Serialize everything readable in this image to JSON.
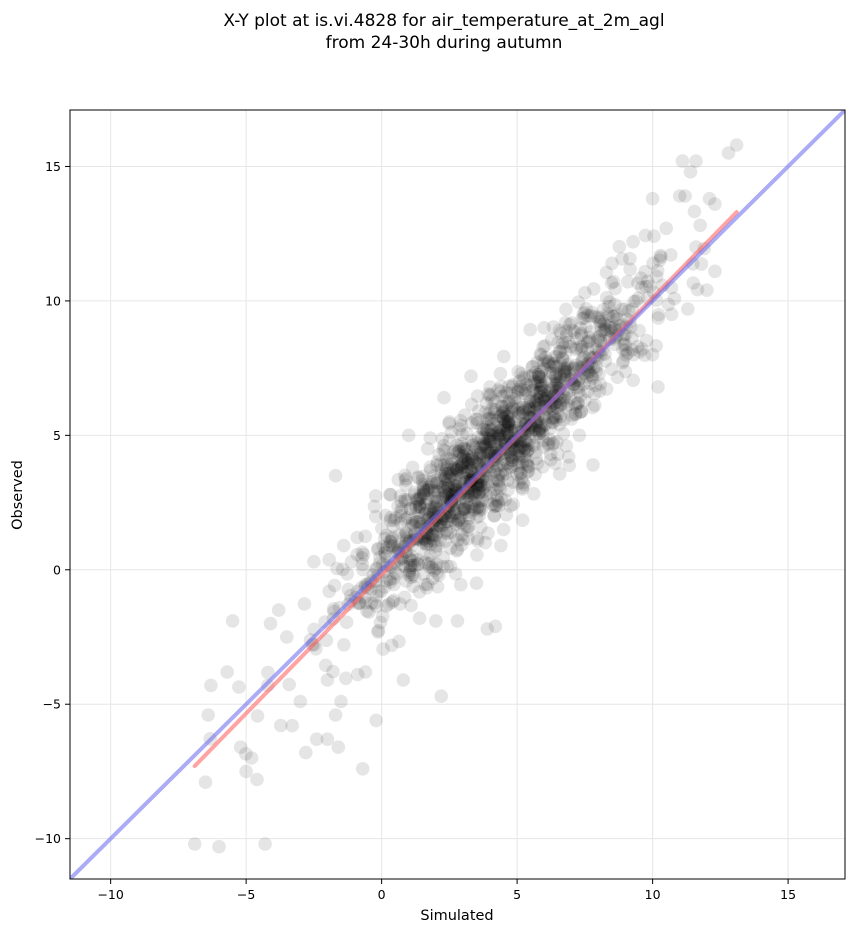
{
  "chart_data": {
    "type": "scatter",
    "title_line1": "X-Y plot at is.vi.4828 for air_temperature_at_2m_agl",
    "title_line2": "from 24-30h during autumn",
    "xlabel": "Simulated",
    "ylabel": "Observed",
    "xlim": [
      -11.5,
      17.1
    ],
    "ylim": [
      -11.5,
      17.1
    ],
    "xticks": [
      -10,
      -5,
      0,
      5,
      10,
      15
    ],
    "yticks": [
      -10,
      -5,
      0,
      5,
      10,
      15
    ],
    "xtick_labels": [
      "−10",
      "−5",
      "0",
      "5",
      "10",
      "15"
    ],
    "ytick_labels": [
      "−10",
      "−5",
      "0",
      "5",
      "10",
      "15"
    ],
    "grid": true,
    "point_color": "#000000",
    "point_alpha": 0.1,
    "fit_line": {
      "color": "#ff6666",
      "x": [
        -6.9,
        13.1
      ],
      "y": [
        -7.3,
        13.3
      ]
    },
    "identity_line": {
      "color": "#6666ee",
      "x": [
        -11.5,
        17.1
      ],
      "y": [
        -11.5,
        17.1
      ]
    },
    "outliers": [
      [
        -6.9,
        -10.2
      ],
      [
        -6.0,
        -10.3
      ],
      [
        -4.3,
        -10.2
      ],
      [
        -6.5,
        -7.9
      ],
      [
        -4.6,
        -7.8
      ],
      [
        -5.0,
        -7.5
      ],
      [
        -4.8,
        -7.0
      ],
      [
        -5.2,
        -6.6
      ],
      [
        -6.4,
        -5.4
      ],
      [
        -6.3,
        -4.3
      ],
      [
        -5.7,
        -3.8
      ],
      [
        -5.5,
        -1.9
      ],
      [
        -1.6,
        -6.6
      ],
      [
        -0.7,
        -7.4
      ],
      [
        -0.2,
        -5.6
      ],
      [
        0.8,
        -4.1
      ],
      [
        2.2,
        -4.7
      ],
      [
        3.9,
        -2.2
      ],
      [
        4.2,
        -2.1
      ],
      [
        -2.8,
        -6.8
      ],
      [
        -3.3,
        -5.8
      ],
      [
        -1.7,
        3.5
      ],
      [
        2.8,
        -1.9
      ],
      [
        1.4,
        -1.8
      ],
      [
        2.0,
        -1.9
      ],
      [
        3.3,
        7.2
      ],
      [
        4.0,
        6.8
      ],
      [
        5.2,
        3.0
      ],
      [
        4.5,
        1.5
      ],
      [
        1.0,
        5.0
      ],
      [
        2.3,
        6.4
      ],
      [
        10.2,
        6.8
      ],
      [
        7.8,
        3.9
      ],
      [
        9.3,
        8.0
      ],
      [
        6.0,
        9.0
      ],
      [
        7.5,
        10.3
      ],
      [
        11.1,
        15.2
      ],
      [
        11.6,
        15.2
      ],
      [
        12.8,
        15.5
      ],
      [
        13.1,
        15.8
      ],
      [
        11.4,
        14.8
      ],
      [
        10.0,
        13.8
      ],
      [
        11.0,
        13.9
      ],
      [
        11.2,
        13.9
      ],
      [
        12.1,
        13.8
      ],
      [
        12.3,
        13.6
      ],
      [
        10.5,
        12.7
      ],
      [
        11.6,
        12.0
      ],
      [
        12.3,
        11.1
      ],
      [
        11.3,
        9.7
      ],
      [
        12.0,
        10.4
      ],
      [
        8.5,
        11.4
      ],
      [
        10.7,
        9.5
      ],
      [
        8.9,
        8.2
      ],
      [
        10.0,
        8.0
      ],
      [
        -3.5,
        -2.5
      ],
      [
        -2.5,
        0.3
      ],
      [
        -4.2,
        -4.3
      ],
      [
        -3.0,
        -4.9
      ],
      [
        -2.0,
        -4.1
      ],
      [
        -1.5,
        -4.9
      ],
      [
        -1.7,
        -5.4
      ],
      [
        -0.6,
        -3.8
      ],
      [
        -2.4,
        -6.3
      ],
      [
        -2.0,
        -6.3
      ],
      [
        0.3,
        2.8
      ],
      [
        0.9,
        3.4
      ],
      [
        1.7,
        4.5
      ],
      [
        2.5,
        5.5
      ],
      [
        6.5,
        4.3
      ],
      [
        8.9,
        7.7
      ],
      [
        9.5,
        8.9
      ],
      [
        6.9,
        4.2
      ],
      [
        7.3,
        5.0
      ],
      [
        -1.4,
        0.9
      ],
      [
        -0.9,
        1.2
      ],
      [
        3.5,
        -0.5
      ],
      [
        4.4,
        0.9
      ],
      [
        -3.8,
        -1.5
      ],
      [
        -4.1,
        -2.0
      ]
    ]
  }
}
